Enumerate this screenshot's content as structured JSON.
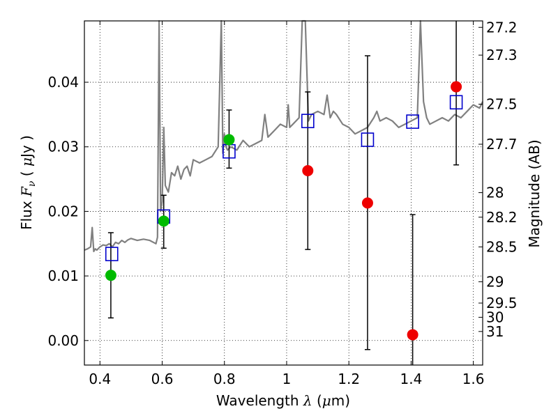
{
  "chart_data": {
    "type": "scatter",
    "title": "",
    "xlabel_text": "Wavelength ",
    "xlabel_symbol": "λ",
    "xlabel_unit_open": " (",
    "xlabel_unit_mu": "μ",
    "xlabel_unit_rest": "m)",
    "ylabel_text": "Flux ",
    "ylabel_symbol": "F",
    "ylabel_sub": "ν",
    "ylabel_unit_open": " ( ",
    "ylabel_unit_mu": "μ",
    "ylabel_unit_rest": "Jy )",
    "y2label": "Magnitude (AB)",
    "xlim": [
      0.35,
      1.63
    ],
    "ylim": [
      -0.0038,
      0.0495
    ],
    "grid": true,
    "x_ticks": [
      0.4,
      0.6,
      0.8,
      1.0,
      1.2,
      1.4,
      1.6
    ],
    "x_tick_labels": [
      "0.4",
      "0.6",
      "0.8",
      "1",
      "1.2",
      "1.4",
      "1.6"
    ],
    "y_ticks": [
      0.0,
      0.01,
      0.02,
      0.03,
      0.04
    ],
    "y_tick_labels": [
      "0.00",
      "0.01",
      "0.02",
      "0.03",
      "0.04"
    ],
    "mag_ticks": [
      {
        "label": "27.2",
        "flux": 0.0485
      },
      {
        "label": "27.3",
        "flux": 0.0442
      },
      {
        "label": "27.5",
        "flux": 0.0366
      },
      {
        "label": "27.7",
        "flux": 0.0304
      },
      {
        "label": "28",
        "flux": 0.0229
      },
      {
        "label": "28.2",
        "flux": 0.0191
      },
      {
        "label": "28.5",
        "flux": 0.0145
      },
      {
        "label": "29",
        "flux": 0.0091
      },
      {
        "label": "29.5",
        "flux": 0.0058
      },
      {
        "label": "30",
        "flux": 0.0036
      },
      {
        "label": "31",
        "flux": 0.0014
      }
    ],
    "colors": {
      "sed": "#808080",
      "model": "#0000cc",
      "detection": "#00bb00",
      "nondetection": "#ee0000",
      "errorbar": "#000000"
    },
    "series": [
      {
        "kind": "line",
        "x": [
          0.35,
          0.36,
          0.37,
          0.375,
          0.38,
          0.385,
          0.39,
          0.4,
          0.41,
          0.42,
          0.43,
          0.44,
          0.45,
          0.46,
          0.47,
          0.48,
          0.49,
          0.5,
          0.52,
          0.54,
          0.56,
          0.58,
          0.585,
          0.59,
          0.595,
          0.6,
          0.605,
          0.61,
          0.62,
          0.63,
          0.64,
          0.65,
          0.66,
          0.67,
          0.68,
          0.69,
          0.7,
          0.72,
          0.74,
          0.76,
          0.78,
          0.79,
          0.795,
          0.8,
          0.805,
          0.81,
          0.82,
          0.84,
          0.86,
          0.88,
          0.9,
          0.92,
          0.93,
          0.94,
          0.95,
          0.96,
          0.98,
          1.0,
          1.005,
          1.01,
          1.02,
          1.04,
          1.05,
          1.06,
          1.07,
          1.08,
          1.1,
          1.12,
          1.13,
          1.14,
          1.15,
          1.16,
          1.18,
          1.2,
          1.22,
          1.24,
          1.26,
          1.28,
          1.29,
          1.3,
          1.32,
          1.34,
          1.36,
          1.38,
          1.4,
          1.42,
          1.43,
          1.44,
          1.45,
          1.46,
          1.48,
          1.5,
          1.52,
          1.54,
          1.56,
          1.58,
          1.6,
          1.62,
          1.63
        ],
        "y": [
          0.014,
          0.0142,
          0.0145,
          0.0175,
          0.0138,
          0.0142,
          0.014,
          0.0145,
          0.0148,
          0.0147,
          0.015,
          0.0145,
          0.0152,
          0.015,
          0.0155,
          0.0152,
          0.0156,
          0.0158,
          0.0155,
          0.0157,
          0.0155,
          0.015,
          0.016,
          0.0495,
          0.02,
          0.0215,
          0.033,
          0.024,
          0.023,
          0.026,
          0.0255,
          0.027,
          0.025,
          0.0265,
          0.027,
          0.0255,
          0.028,
          0.0275,
          0.028,
          0.0285,
          0.03,
          0.0495,
          0.029,
          0.032,
          0.03,
          0.0295,
          0.03,
          0.0295,
          0.031,
          0.03,
          0.0305,
          0.031,
          0.035,
          0.0315,
          0.032,
          0.0325,
          0.0335,
          0.033,
          0.0365,
          0.033,
          0.0335,
          0.0345,
          0.0495,
          0.0495,
          0.034,
          0.035,
          0.0355,
          0.035,
          0.038,
          0.0345,
          0.0355,
          0.035,
          0.0335,
          0.033,
          0.032,
          0.0325,
          0.033,
          0.0345,
          0.0355,
          0.034,
          0.0345,
          0.034,
          0.033,
          0.0335,
          0.034,
          0.0345,
          0.0495,
          0.037,
          0.0345,
          0.0335,
          0.034,
          0.0345,
          0.034,
          0.035,
          0.0345,
          0.0355,
          0.0365,
          0.036,
          0.037
        ]
      },
      {
        "kind": "model-squares",
        "x": [
          0.438,
          0.605,
          0.815,
          1.068,
          1.26,
          1.405,
          1.545
        ],
        "y": [
          0.0134,
          0.0192,
          0.0293,
          0.034,
          0.0311,
          0.0339,
          0.0369
        ]
      },
      {
        "kind": "detections",
        "x": [
          0.435,
          0.605,
          0.815
        ],
        "y": [
          0.0101,
          0.0185,
          0.0311
        ],
        "err_low": [
          0.0035,
          0.0143,
          0.0267
        ],
        "err_high": [
          0.0167,
          0.0225,
          0.0357
        ]
      },
      {
        "kind": "nondetections",
        "x": [
          1.068,
          1.26,
          1.405,
          1.545
        ],
        "y": [
          0.0263,
          0.0213,
          0.0009,
          0.0393
        ],
        "err_low": [
          0.0141,
          -0.0014,
          -0.0038,
          0.0272
        ],
        "err_high": [
          0.0385,
          0.0441,
          0.0195,
          0.0495
        ]
      }
    ]
  }
}
